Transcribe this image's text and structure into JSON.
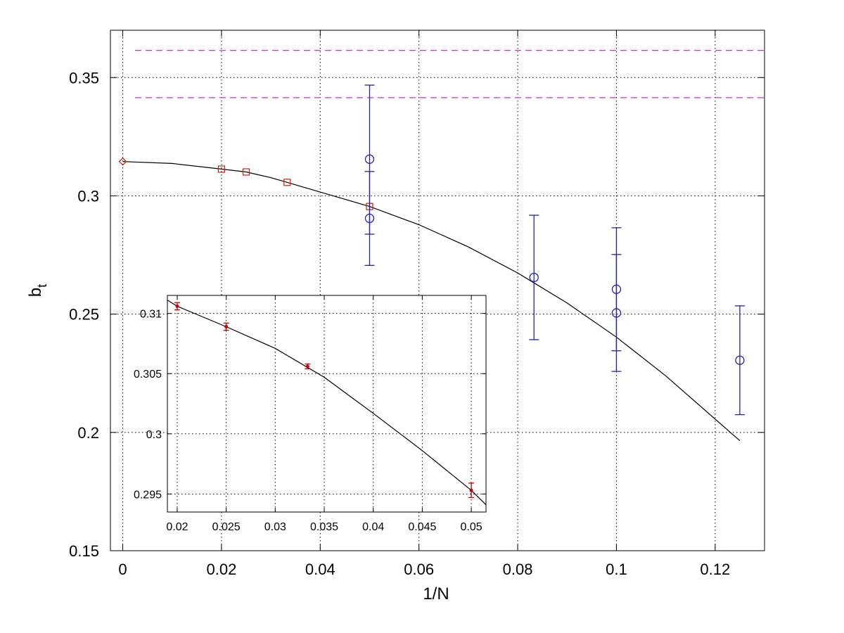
{
  "chart_data": [
    {
      "type": "scatter",
      "role": "main",
      "xlabel": "1/N",
      "ylabel": "b_t",
      "ylabel_main": "b",
      "ylabel_sub": "t",
      "xlim": [
        -0.0025,
        0.13
      ],
      "ylim": [
        0.15,
        0.37
      ],
      "xticks": [
        0,
        0.02,
        0.04,
        0.06,
        0.08,
        0.1,
        0.12
      ],
      "xtick_labels": [
        "0",
        "0.02",
        "0.04",
        "0.06",
        "0.08",
        "0.1",
        "0.12"
      ],
      "yticks": [
        0.15,
        0.2,
        0.25,
        0.3,
        0.35
      ],
      "ytick_labels": [
        "0.15",
        "0.2",
        "0.25",
        "0.3",
        "0.35"
      ],
      "grid": true,
      "series": [
        {
          "marker": "diamond",
          "color": "#cc2200",
          "points": [
            {
              "x": 0,
              "y": 0.3145
            }
          ]
        },
        {
          "marker": "square",
          "color": "#cc2200",
          "points": [
            {
              "x": 0.02,
              "y": 0.3113
            },
            {
              "x": 0.025,
              "y": 0.3101
            },
            {
              "x": 0.0333,
              "y": 0.3057
            },
            {
              "x": 0.05,
              "y": 0.2955
            }
          ]
        },
        {
          "marker": "circle",
          "color": "#2222aa",
          "points": [
            {
              "x": 0.05,
              "y": 0.3155,
              "lo": 0.2838,
              "hi": 0.3468
            },
            {
              "x": 0.05,
              "y": 0.2905,
              "lo": 0.2706,
              "hi": 0.3103
            },
            {
              "x": 0.0833,
              "y": 0.2655,
              "lo": 0.2392,
              "hi": 0.2918
            },
            {
              "x": 0.1,
              "y": 0.2605,
              "lo": 0.2345,
              "hi": 0.2865
            },
            {
              "x": 0.1,
              "y": 0.2505,
              "lo": 0.2258,
              "hi": 0.2752
            },
            {
              "x": 0.125,
              "y": 0.2305,
              "lo": 0.2075,
              "hi": 0.2535
            }
          ]
        }
      ],
      "fit_curve": {
        "color": "#000000",
        "x": [
          0,
          0.01,
          0.02,
          0.025,
          0.03,
          0.0333,
          0.04,
          0.05,
          0.06,
          0.07,
          0.08,
          0.09,
          0.1,
          0.11,
          0.125
        ],
        "y": [
          0.3145,
          0.3137,
          0.3113,
          0.3101,
          0.3077,
          0.3057,
          0.3016,
          0.2955,
          0.2878,
          0.2784,
          0.2674,
          0.2547,
          0.2403,
          0.2239,
          0.1965
        ]
      },
      "reference_lines": [
        {
          "y": 0.3415,
          "color": "#cc33cc",
          "style": "dashed"
        },
        {
          "y": 0.3615,
          "color": "#cc33cc",
          "style": "dashed"
        }
      ]
    },
    {
      "type": "scatter",
      "role": "inset",
      "xlim": [
        0.019,
        0.0515
      ],
      "ylim": [
        0.2935,
        0.3115
      ],
      "xticks": [
        0.02,
        0.025,
        0.03,
        0.035,
        0.04,
        0.045,
        0.05
      ],
      "xtick_labels": [
        "0.02",
        "0.025",
        "0.03",
        "0.035",
        "0.04",
        "0.045",
        "0.05"
      ],
      "yticks": [
        0.295,
        0.3,
        0.305,
        0.31
      ],
      "ytick_labels": [
        "0.295",
        "0.3",
        "0.305",
        "0.31"
      ],
      "grid": true,
      "series": [
        {
          "marker": "dot",
          "color": "#cc0000",
          "points": [
            {
              "x": 0.02,
              "y": 0.3106,
              "lo": 0.3103,
              "hi": 0.3109
            },
            {
              "x": 0.025,
              "y": 0.3089,
              "lo": 0.3086,
              "hi": 0.3092
            },
            {
              "x": 0.0333,
              "y": 0.3056,
              "lo": 0.3054,
              "hi": 0.3058
            },
            {
              "x": 0.05,
              "y": 0.2953,
              "lo": 0.2947,
              "hi": 0.2959
            }
          ]
        }
      ],
      "fit_curve": {
        "color": "#000000",
        "x": [
          0.019,
          0.02,
          0.025,
          0.03,
          0.035,
          0.04,
          0.045,
          0.05,
          0.0515
        ],
        "y": [
          0.3111,
          0.3106,
          0.3089,
          0.3071,
          0.3047,
          0.3017,
          0.2986,
          0.2953,
          0.2941
        ]
      }
    }
  ]
}
